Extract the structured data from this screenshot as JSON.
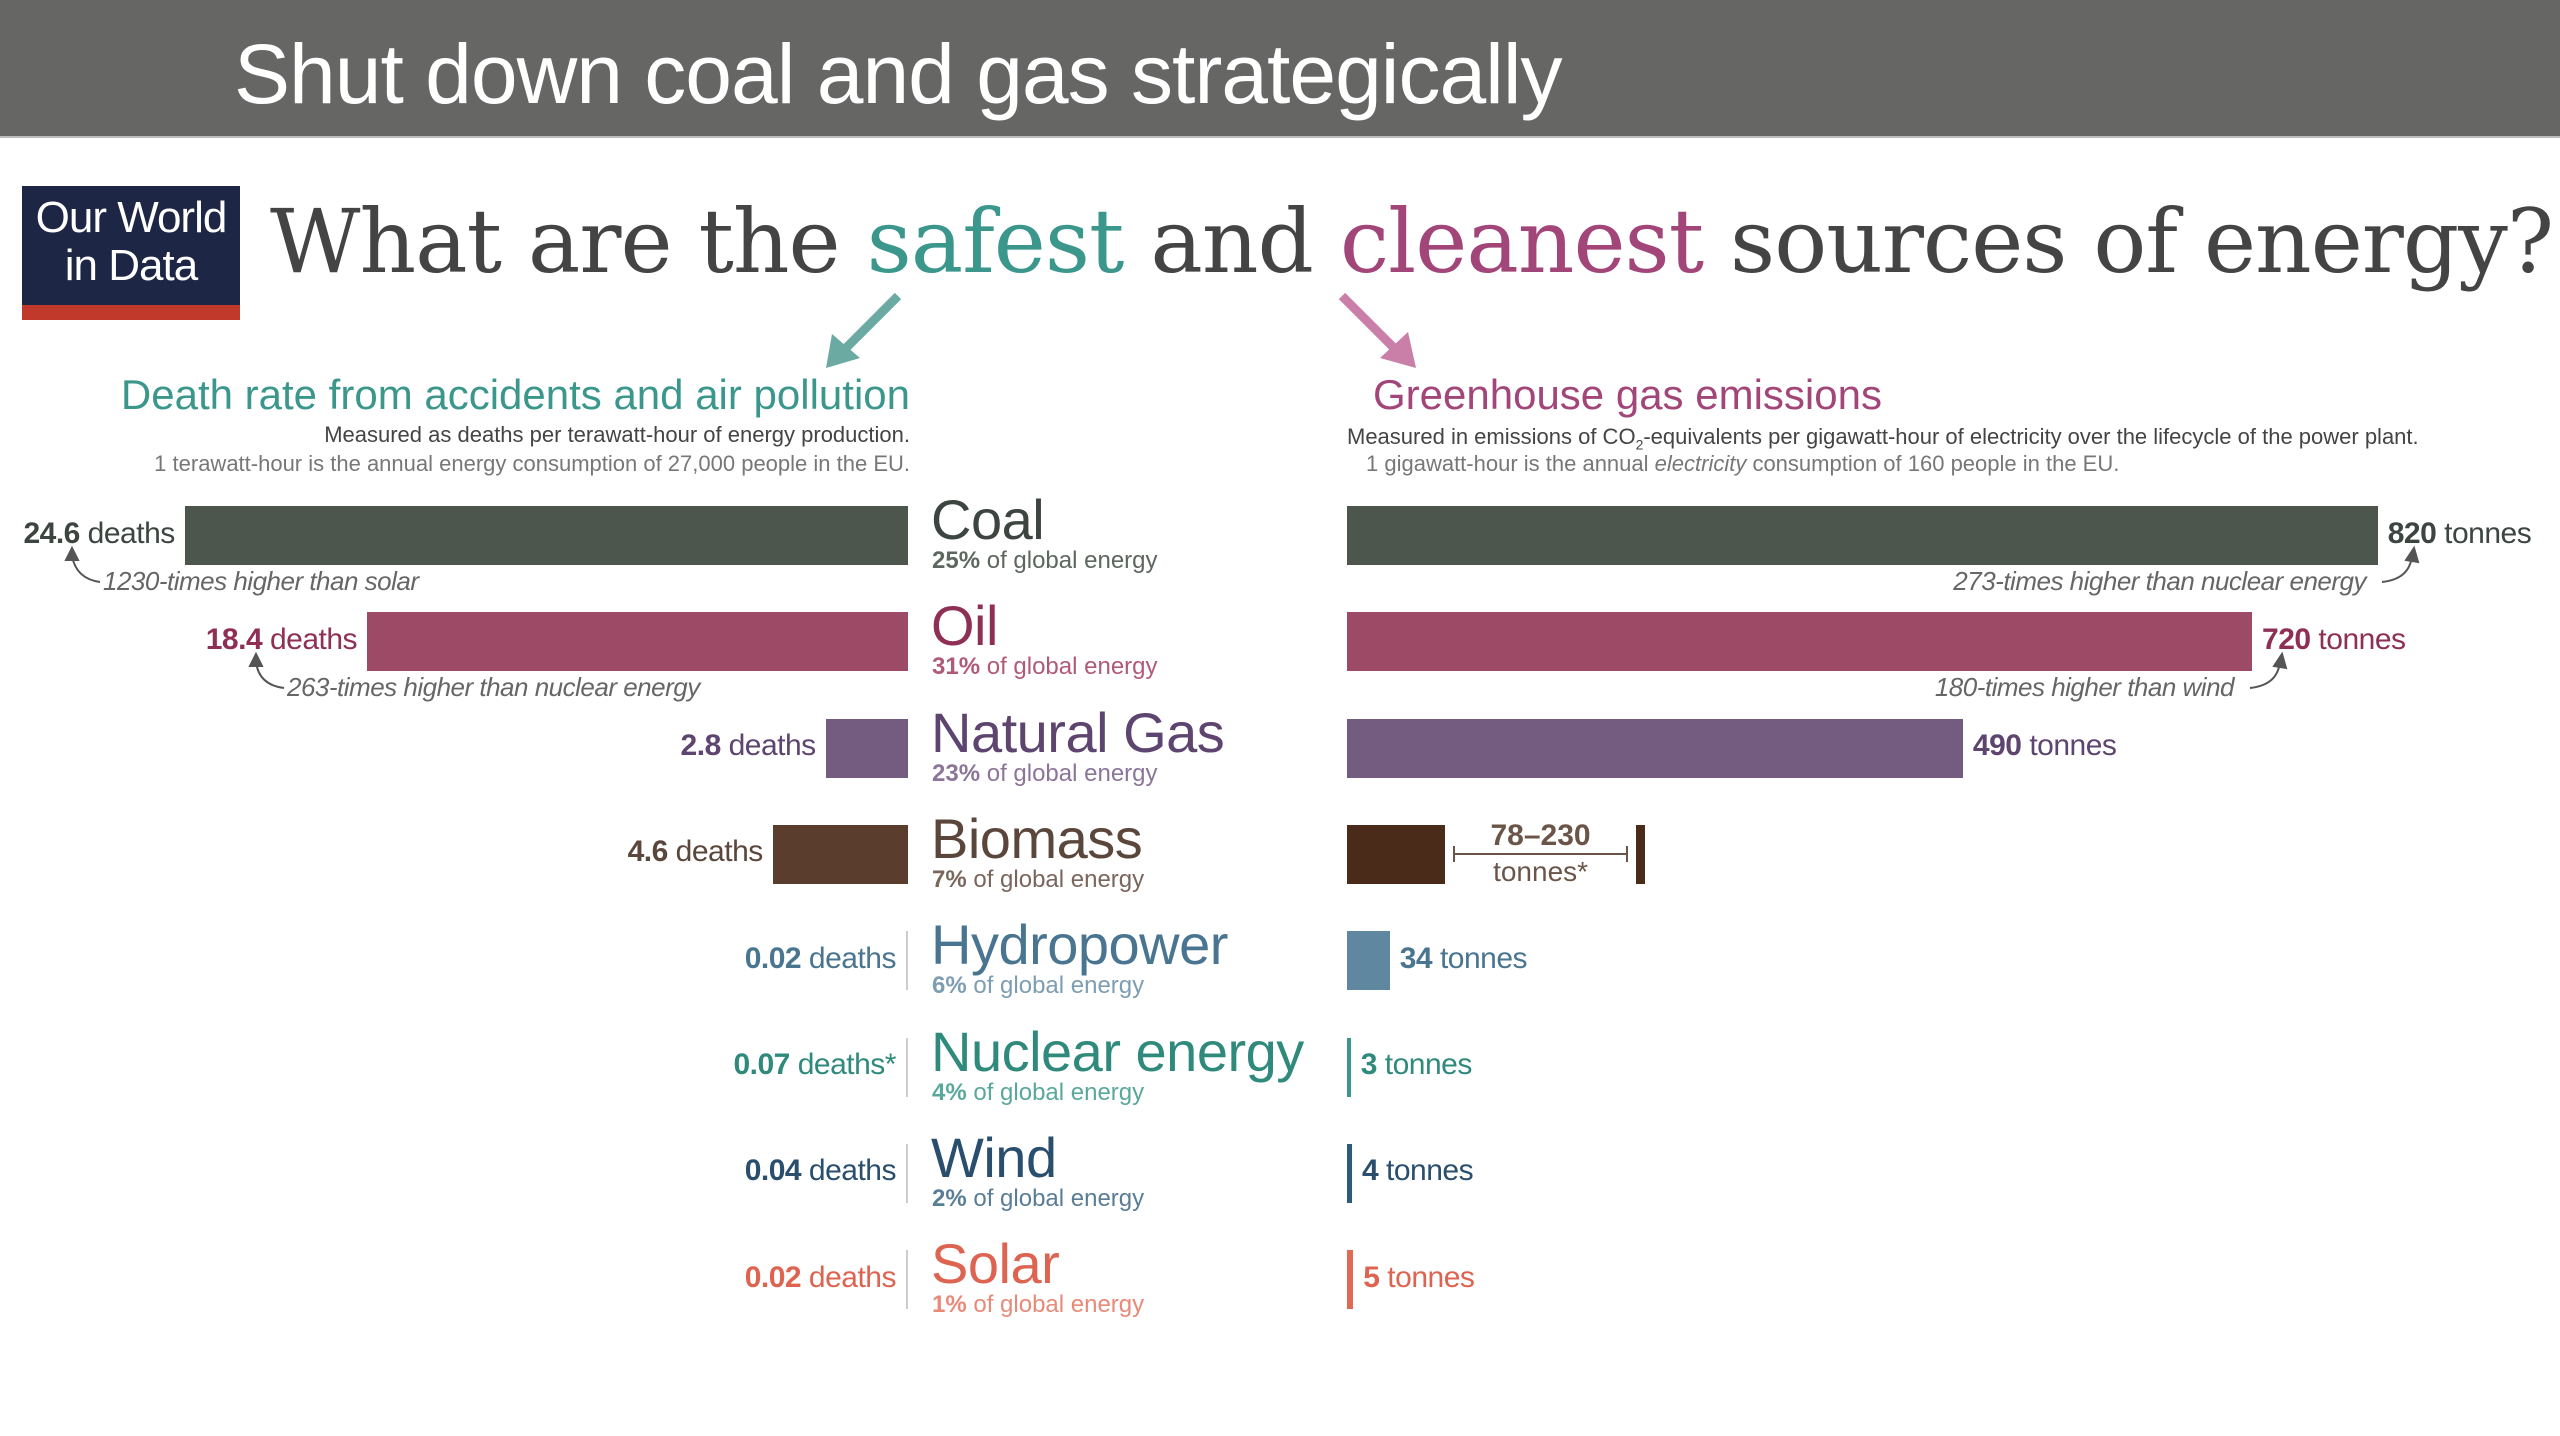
{
  "slide_title": "Shut down coal and gas strategically",
  "logo": {
    "line1": "Our World",
    "line2": "in Data"
  },
  "headline": {
    "part1": "What are the ",
    "safest": "safest",
    "part2": " and ",
    "cleanest": "cleanest",
    "part3": " sources of energy?"
  },
  "colors": {
    "safest": "#3b978c",
    "cleanest": "#a2467a",
    "header_bg": "#666665",
    "logo_bg": "#1d2645",
    "logo_stripe": "#c0392b"
  },
  "left_panel": {
    "title": "Death rate from accidents and air pollution",
    "subtitle": "Measured as deaths per terawatt-hour of energy production.",
    "note": "1 terawatt-hour is the annual energy consumption of 27,000 people in the EU."
  },
  "right_panel": {
    "title": "Greenhouse gas emissions",
    "subtitle_pre": "Measured in emissions of CO",
    "subtitle_sub": "2",
    "subtitle_post": "-equivalents per gigawatt-hour of electricity over the lifecycle of the power plant.",
    "note_pre": "1 gigawatt-hour is the annual ",
    "note_em": "electricity",
    "note_post": " consumption of 160 people in the EU."
  },
  "chart_data": [
    {
      "type": "bar",
      "orientation": "horizontal",
      "title": "Death rate from accidents and air pollution",
      "unit": "deaths",
      "categories": [
        "Coal",
        "Oil",
        "Natural Gas",
        "Biomass",
        "Hydropower",
        "Nuclear energy",
        "Wind",
        "Solar"
      ],
      "values": [
        24.6,
        18.4,
        2.8,
        4.6,
        0.02,
        0.07,
        0.04,
        0.02
      ],
      "value_suffixes": [
        "",
        "",
        "",
        "",
        "",
        "*",
        "",
        ""
      ],
      "annotations": [
        {
          "category": "Coal",
          "text": "1230-times higher than solar"
        },
        {
          "category": "Oil",
          "text": "263-times higher than nuclear energy"
        }
      ]
    },
    {
      "type": "bar",
      "orientation": "horizontal",
      "title": "Greenhouse gas emissions",
      "unit": "tonnes",
      "categories": [
        "Coal",
        "Oil",
        "Natural Gas",
        "Biomass",
        "Hydropower",
        "Nuclear energy",
        "Wind",
        "Solar"
      ],
      "values": [
        820,
        720,
        490,
        78,
        34,
        3,
        4,
        5
      ],
      "biomass_range": {
        "low": 78,
        "high": 230,
        "label": "78–230",
        "unit": "tonnes*"
      },
      "annotations": [
        {
          "category": "Coal",
          "text": "273-times higher than nuclear energy"
        },
        {
          "category": "Oil",
          "text": "180-times higher than wind"
        }
      ]
    }
  ],
  "sources": [
    {
      "name": "Coal",
      "share": "25%",
      "share_text": " of global energy",
      "color": "#4c564d",
      "text_color": "#3c4540",
      "share_color": "#5e6660",
      "deaths": "24.6",
      "tonnes": "820"
    },
    {
      "name": "Oil",
      "share": "31%",
      "share_text": " of global energy",
      "color": "#9c4a66",
      "text_color": "#8e2f55",
      "share_color": "#b05a7a",
      "deaths": "18.4",
      "tonnes": "720"
    },
    {
      "name": "Natural Gas",
      "share": "23%",
      "share_text": " of global energy",
      "color": "#745c80",
      "text_color": "#5d4570",
      "share_color": "#8c7599",
      "deaths": "2.8",
      "tonnes": "490"
    },
    {
      "name": "Biomass",
      "share": "7%",
      "share_text": " of global energy",
      "color": "#5b3d2e",
      "right_color": "#4a2a18",
      "text_color": "#5b463c",
      "share_color": "#7a665c",
      "deaths": "4.6",
      "tonnes": "78–230"
    },
    {
      "name": "Hydropower",
      "share": "6%",
      "share_text": " of global energy",
      "color": "#5f87a0",
      "text_color": "#4a7590",
      "share_color": "#7d9db2",
      "deaths": "0.02",
      "tonnes": "34"
    },
    {
      "name": "Nuclear energy",
      "share": "4%",
      "share_text": " of global energy",
      "color": "#3b978c",
      "text_color": "#2f8a7c",
      "share_color": "#5aa89c",
      "deaths": "0.07",
      "deaths_suffix": "*",
      "tonnes": "3"
    },
    {
      "name": "Wind",
      "share": "2%",
      "share_text": " of global energy",
      "color": "#2e5a7c",
      "text_color": "#294e6e",
      "share_color": "#5a7d96",
      "deaths": "0.04",
      "tonnes": "4"
    },
    {
      "name": "Solar",
      "share": "1%",
      "share_text": " of global energy",
      "color": "#e06a55",
      "text_color": "#dd6450",
      "share_color": "#e78a78",
      "deaths": "0.02",
      "tonnes": "5"
    }
  ],
  "units": {
    "deaths": "deaths",
    "tonnes": "tonnes"
  }
}
